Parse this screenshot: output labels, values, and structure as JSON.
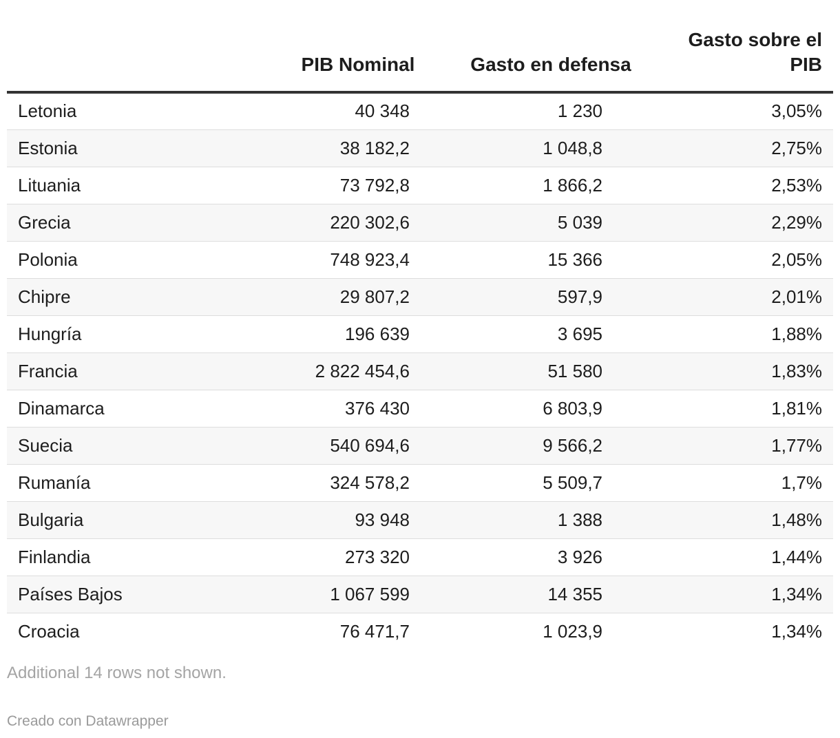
{
  "chart_data": {
    "type": "table",
    "columns": [
      "",
      "PIB Nominal",
      "Gasto en defensa",
      "Gasto sobre el PIB"
    ],
    "rows": [
      [
        "Letonia",
        "40 348",
        "1 230",
        "3,05%"
      ],
      [
        "Estonia",
        "38 182,2",
        "1 048,8",
        "2,75%"
      ],
      [
        "Lituania",
        "73 792,8",
        "1 866,2",
        "2,53%"
      ],
      [
        "Grecia",
        "220 302,6",
        "5 039",
        "2,29%"
      ],
      [
        "Polonia",
        "748 923,4",
        "15 366",
        "2,05%"
      ],
      [
        "Chipre",
        "29 807,2",
        "597,9",
        "2,01%"
      ],
      [
        "Hungría",
        "196 639",
        "3 695",
        "1,88%"
      ],
      [
        "Francia",
        "2 822 454,6",
        "51 580",
        "1,83%"
      ],
      [
        "Dinamarca",
        "376 430",
        "6 803,9",
        "1,81%"
      ],
      [
        "Suecia",
        "540 694,6",
        "9 566,2",
        "1,77%"
      ],
      [
        "Rumanía",
        "324 578,2",
        "5 509,7",
        "1,7%"
      ],
      [
        "Bulgaria",
        "93 948",
        "1 388",
        "1,48%"
      ],
      [
        "Finlandia",
        "273 320",
        "3 926",
        "1,44%"
      ],
      [
        "Países Bajos",
        "1 067 599",
        "14 355",
        "1,34%"
      ],
      [
        "Croacia",
        "76 471,7",
        "1 023,9",
        "1,34%"
      ]
    ],
    "notes": "Additional 14 rows not shown.",
    "footer": "Creado con Datawrapper"
  }
}
